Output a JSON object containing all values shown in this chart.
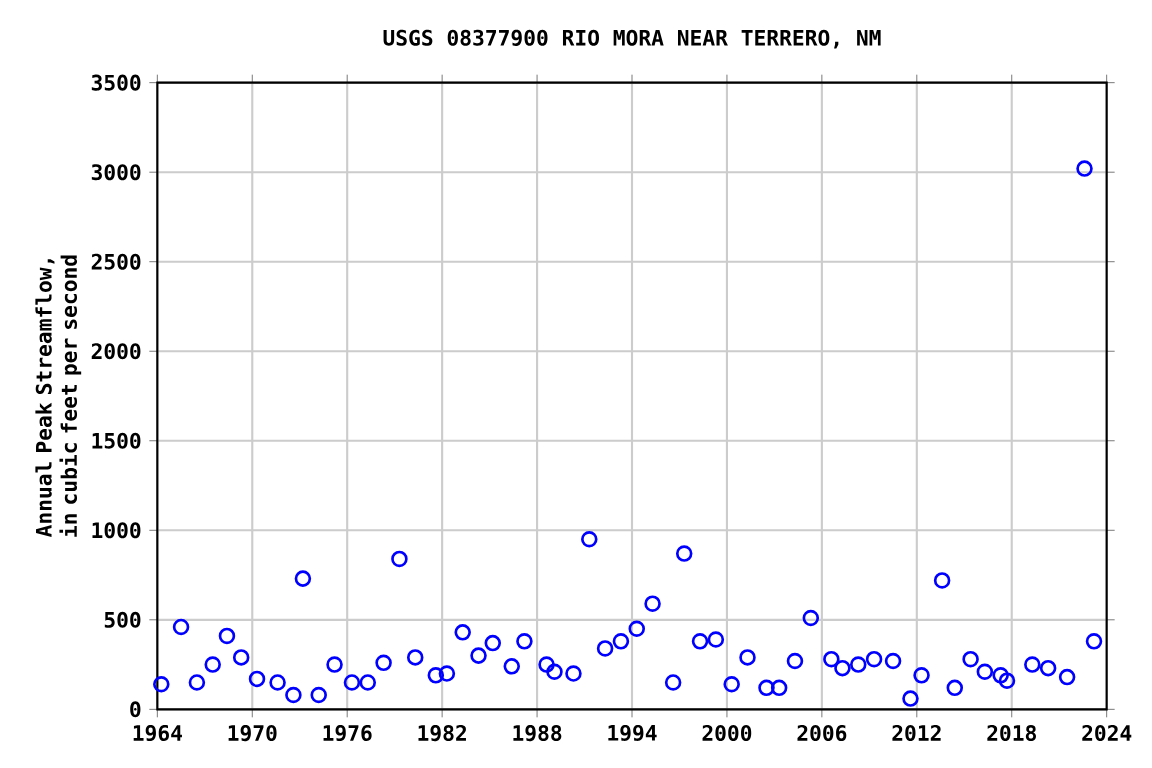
{
  "chart_data": {
    "type": "scatter",
    "title": "USGS 08377900 RIO MORA NEAR TERRERO, NM",
    "ylabel": "Annual Peak Streamflow, in cubic feet per second",
    "x": [
      1964.25,
      1965.5,
      1966.5,
      1967.5,
      1968.4,
      1969.3,
      1970.3,
      1971.6,
      1972.6,
      1973.2,
      1974.2,
      1975.2,
      1976.3,
      1977.3,
      1978.3,
      1979.3,
      1980.3,
      1981.6,
      1982.3,
      1983.3,
      1984.3,
      1985.2,
      1986.4,
      1987.2,
      1988.6,
      1989.1,
      1990.3,
      1991.3,
      1992.3,
      1993.3,
      1994.3,
      1995.3,
      1996.6,
      1997.3,
      1998.3,
      1999.3,
      2000.3,
      2001.3,
      2002.5,
      2003.3,
      2004.3,
      2005.3,
      2006.6,
      2007.3,
      2008.3,
      2009.3,
      2010.5,
      2011.6,
      2012.3,
      2013.6,
      2014.4,
      2015.4,
      2016.3,
      2017.3,
      2017.7,
      2019.3,
      2020.3,
      2021.5,
      2022.6,
      2023.2
    ],
    "series": [
      {
        "color": "#0000ff",
        "values": [
          140,
          460,
          150,
          250,
          410,
          290,
          170,
          150,
          80,
          730,
          80,
          250,
          150,
          150,
          260,
          840,
          290,
          190,
          200,
          430,
          300,
          370,
          240,
          380,
          250,
          210,
          200,
          950,
          340,
          380,
          450,
          590,
          150,
          870,
          380,
          390,
          140,
          290,
          120,
          120,
          270,
          510,
          280,
          230,
          250,
          280,
          270,
          60,
          190,
          720,
          120,
          280,
          210,
          190,
          160,
          250,
          230,
          180,
          3020,
          380
        ]
      }
    ],
    "xlim": [
      1964,
      2024
    ],
    "xticks": [
      1964,
      1970,
      1976,
      1982,
      1988,
      1994,
      2000,
      2006,
      2012,
      2018,
      2024
    ],
    "ylim": [
      0,
      3500
    ],
    "yticks": [
      0,
      500,
      1000,
      1500,
      2000,
      2500,
      3000,
      3500
    ],
    "grid": true,
    "marker": "circle"
  }
}
